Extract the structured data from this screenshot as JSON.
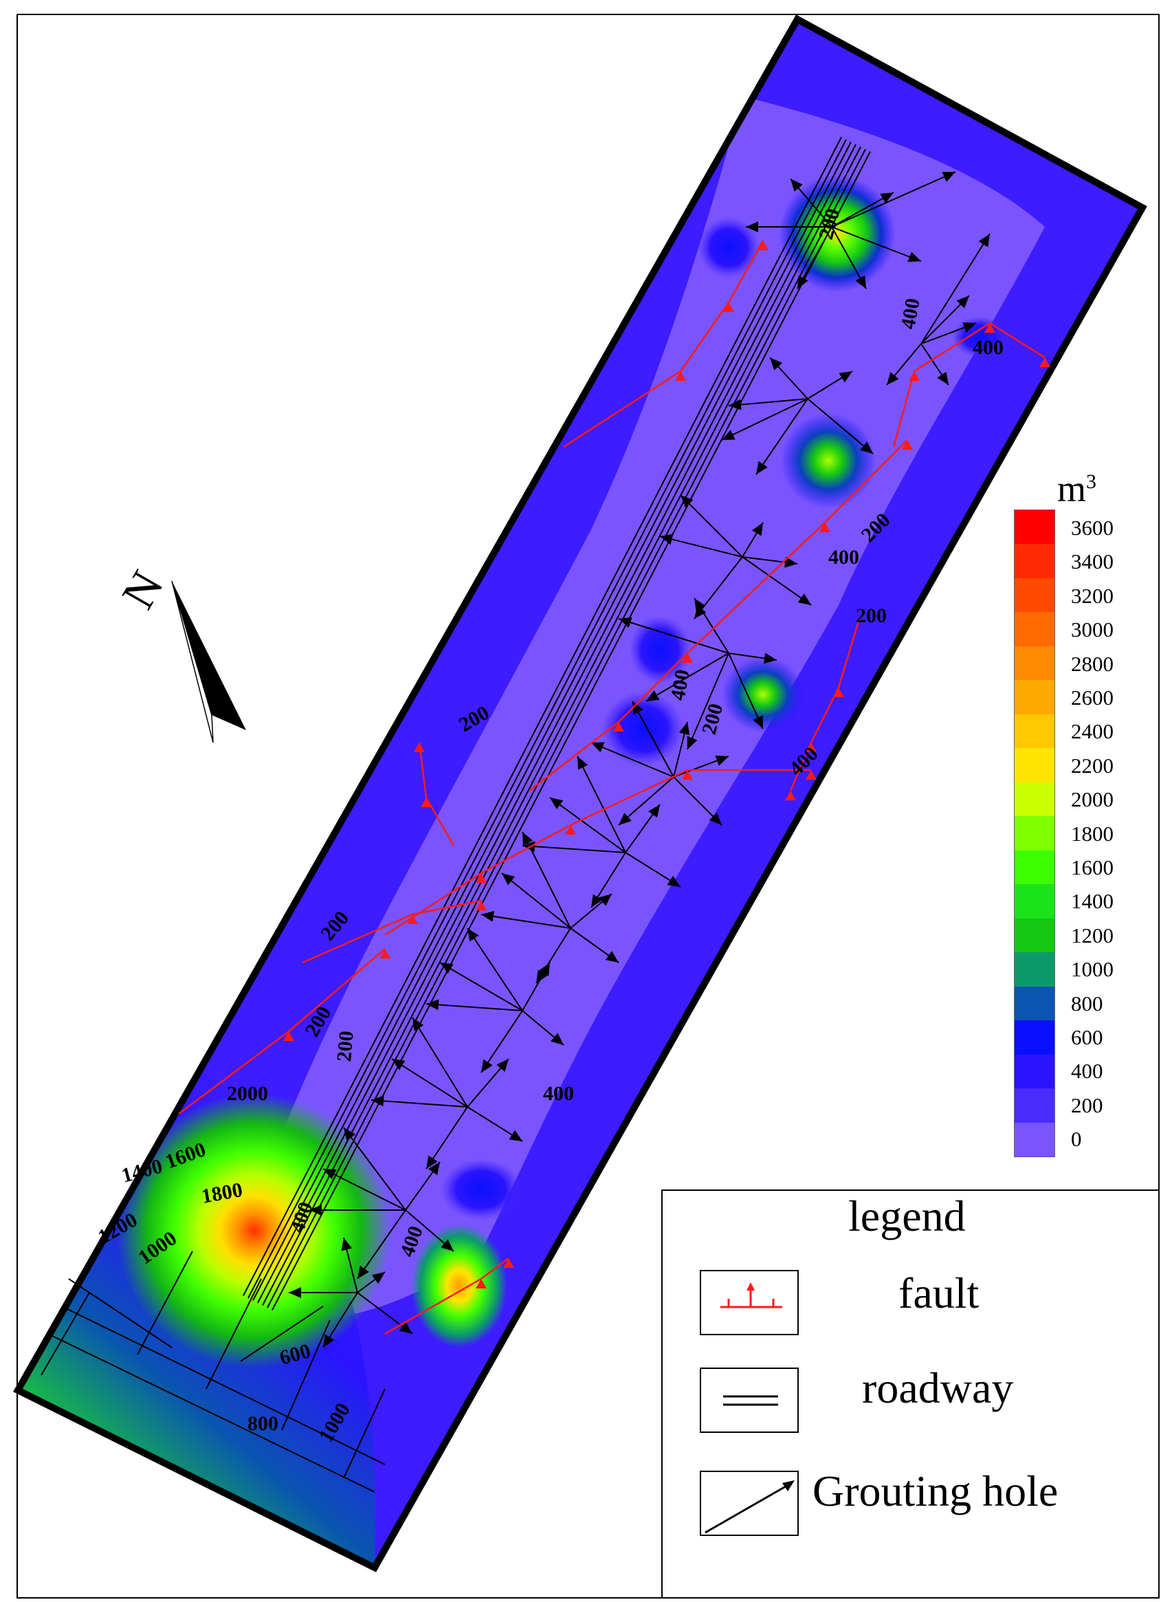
{
  "map": {
    "north_label": "N",
    "colors": {
      "background": "#7a55ff",
      "fault": "#ff1a1a",
      "roadway": "#000000",
      "hole": "#000000"
    },
    "contour_labels": [
      "200",
      "400",
      "600",
      "800",
      "1000",
      "1200",
      "1400",
      "1600",
      "1800",
      "2000"
    ],
    "hotspots": [
      {
        "name": "north-cluster",
        "value": 2200
      },
      {
        "name": "upper-middle-cluster",
        "value": 1800
      },
      {
        "name": "middle-cluster",
        "value": 1200
      },
      {
        "name": "southwest-cluster",
        "value": 3400
      },
      {
        "name": "south-cluster",
        "value": 2400
      }
    ]
  },
  "colorbar": {
    "unit": "m",
    "unit_sup": "3",
    "ticks": [
      "3600",
      "3400",
      "3200",
      "3000",
      "2800",
      "2600",
      "2400",
      "2200",
      "2000",
      "1800",
      "1600",
      "1400",
      "1200",
      "1000",
      "800",
      "600",
      "400",
      "200",
      "0"
    ],
    "colors": [
      "#ff0000",
      "#ff2a00",
      "#ff4a00",
      "#ff6a00",
      "#ff8a00",
      "#ffa800",
      "#ffc800",
      "#ffe600",
      "#ccff00",
      "#7dff00",
      "#3cff00",
      "#19e41a",
      "#14c814",
      "#0c9a6a",
      "#0a55b0",
      "#0a10ff",
      "#2a14ff",
      "#4b2cff",
      "#7a55ff"
    ]
  },
  "legend": {
    "title": "legend",
    "items": [
      {
        "label": "fault"
      },
      {
        "label": "roadway"
      },
      {
        "label": "Grouting hole"
      }
    ]
  }
}
